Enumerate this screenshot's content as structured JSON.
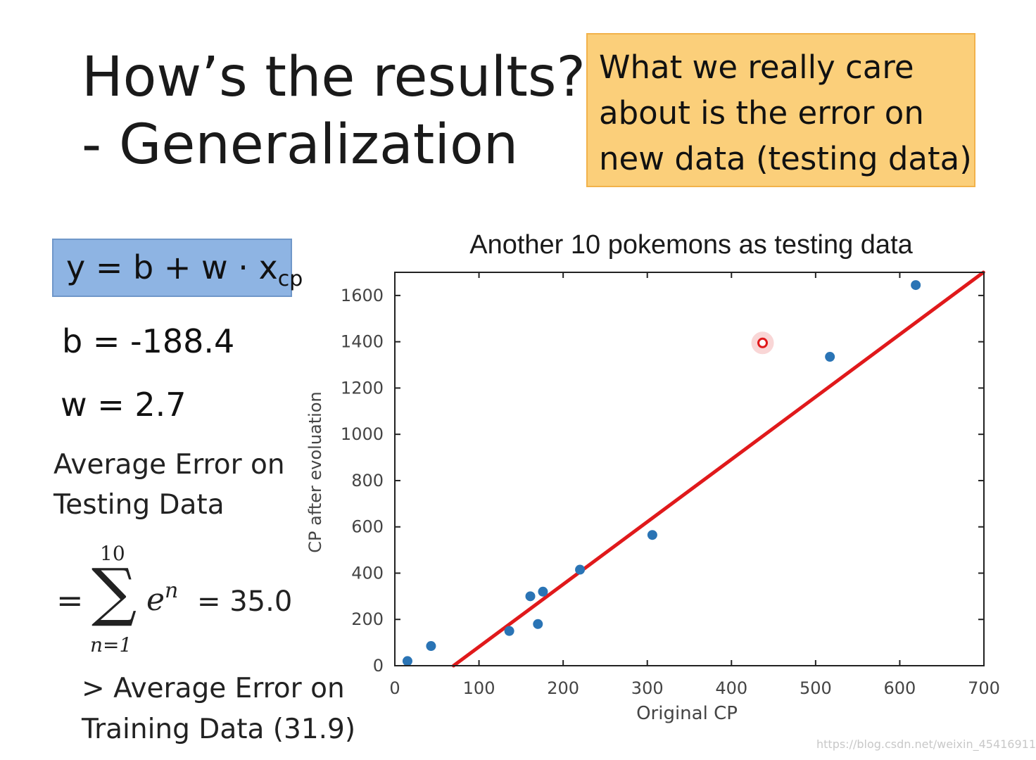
{
  "slide": {
    "title_line1": "How’s the results?",
    "title_line2": "- Generalization",
    "callout": "What we really care about is the error on new data (testing data)",
    "formula": {
      "main": "y = b + w · x",
      "subscript": "cp"
    },
    "b_value": "b = -188.4",
    "w_value": "w = 2.7",
    "avg_error_line1": "Average Error on",
    "avg_error_line2": "Testing Data",
    "sum_equals": "=",
    "sum_symbol": "∑",
    "sum_upper": "10",
    "sum_lower": "n=1",
    "sum_term": "e",
    "sum_term_sup": "n",
    "sum_result": "= 35.0",
    "compare_line1": "> Average Error on",
    "compare_line2": "Training Data (31.9)",
    "watermark": "https://blog.csdn.net/weixin_45416911"
  },
  "chart_data": {
    "type": "scatter",
    "title": "Another 10 pokemons as testing data",
    "xlabel": "Original CP",
    "ylabel": "CP after evoluation",
    "xlim": [
      0,
      700
    ],
    "ylim": [
      0,
      1700
    ],
    "xticks": [
      0,
      100,
      200,
      300,
      400,
      500,
      600,
      700
    ],
    "yticks": [
      0,
      200,
      400,
      600,
      800,
      1000,
      1200,
      1400,
      1600
    ],
    "points": [
      {
        "x": 15,
        "y": 20
      },
      {
        "x": 43,
        "y": 85
      },
      {
        "x": 136,
        "y": 150
      },
      {
        "x": 161,
        "y": 300
      },
      {
        "x": 170,
        "y": 180
      },
      {
        "x": 176,
        "y": 320
      },
      {
        "x": 220,
        "y": 415
      },
      {
        "x": 306,
        "y": 565
      },
      {
        "x": 517,
        "y": 1335
      },
      {
        "x": 619,
        "y": 1645
      }
    ],
    "highlight_point": {
      "x": 437,
      "y": 1395
    },
    "regression_line": {
      "b": -188.4,
      "w": 2.7
    },
    "point_color": "#2a74b5",
    "line_color": "#e0191b",
    "highlight_color": "#e0191b"
  }
}
